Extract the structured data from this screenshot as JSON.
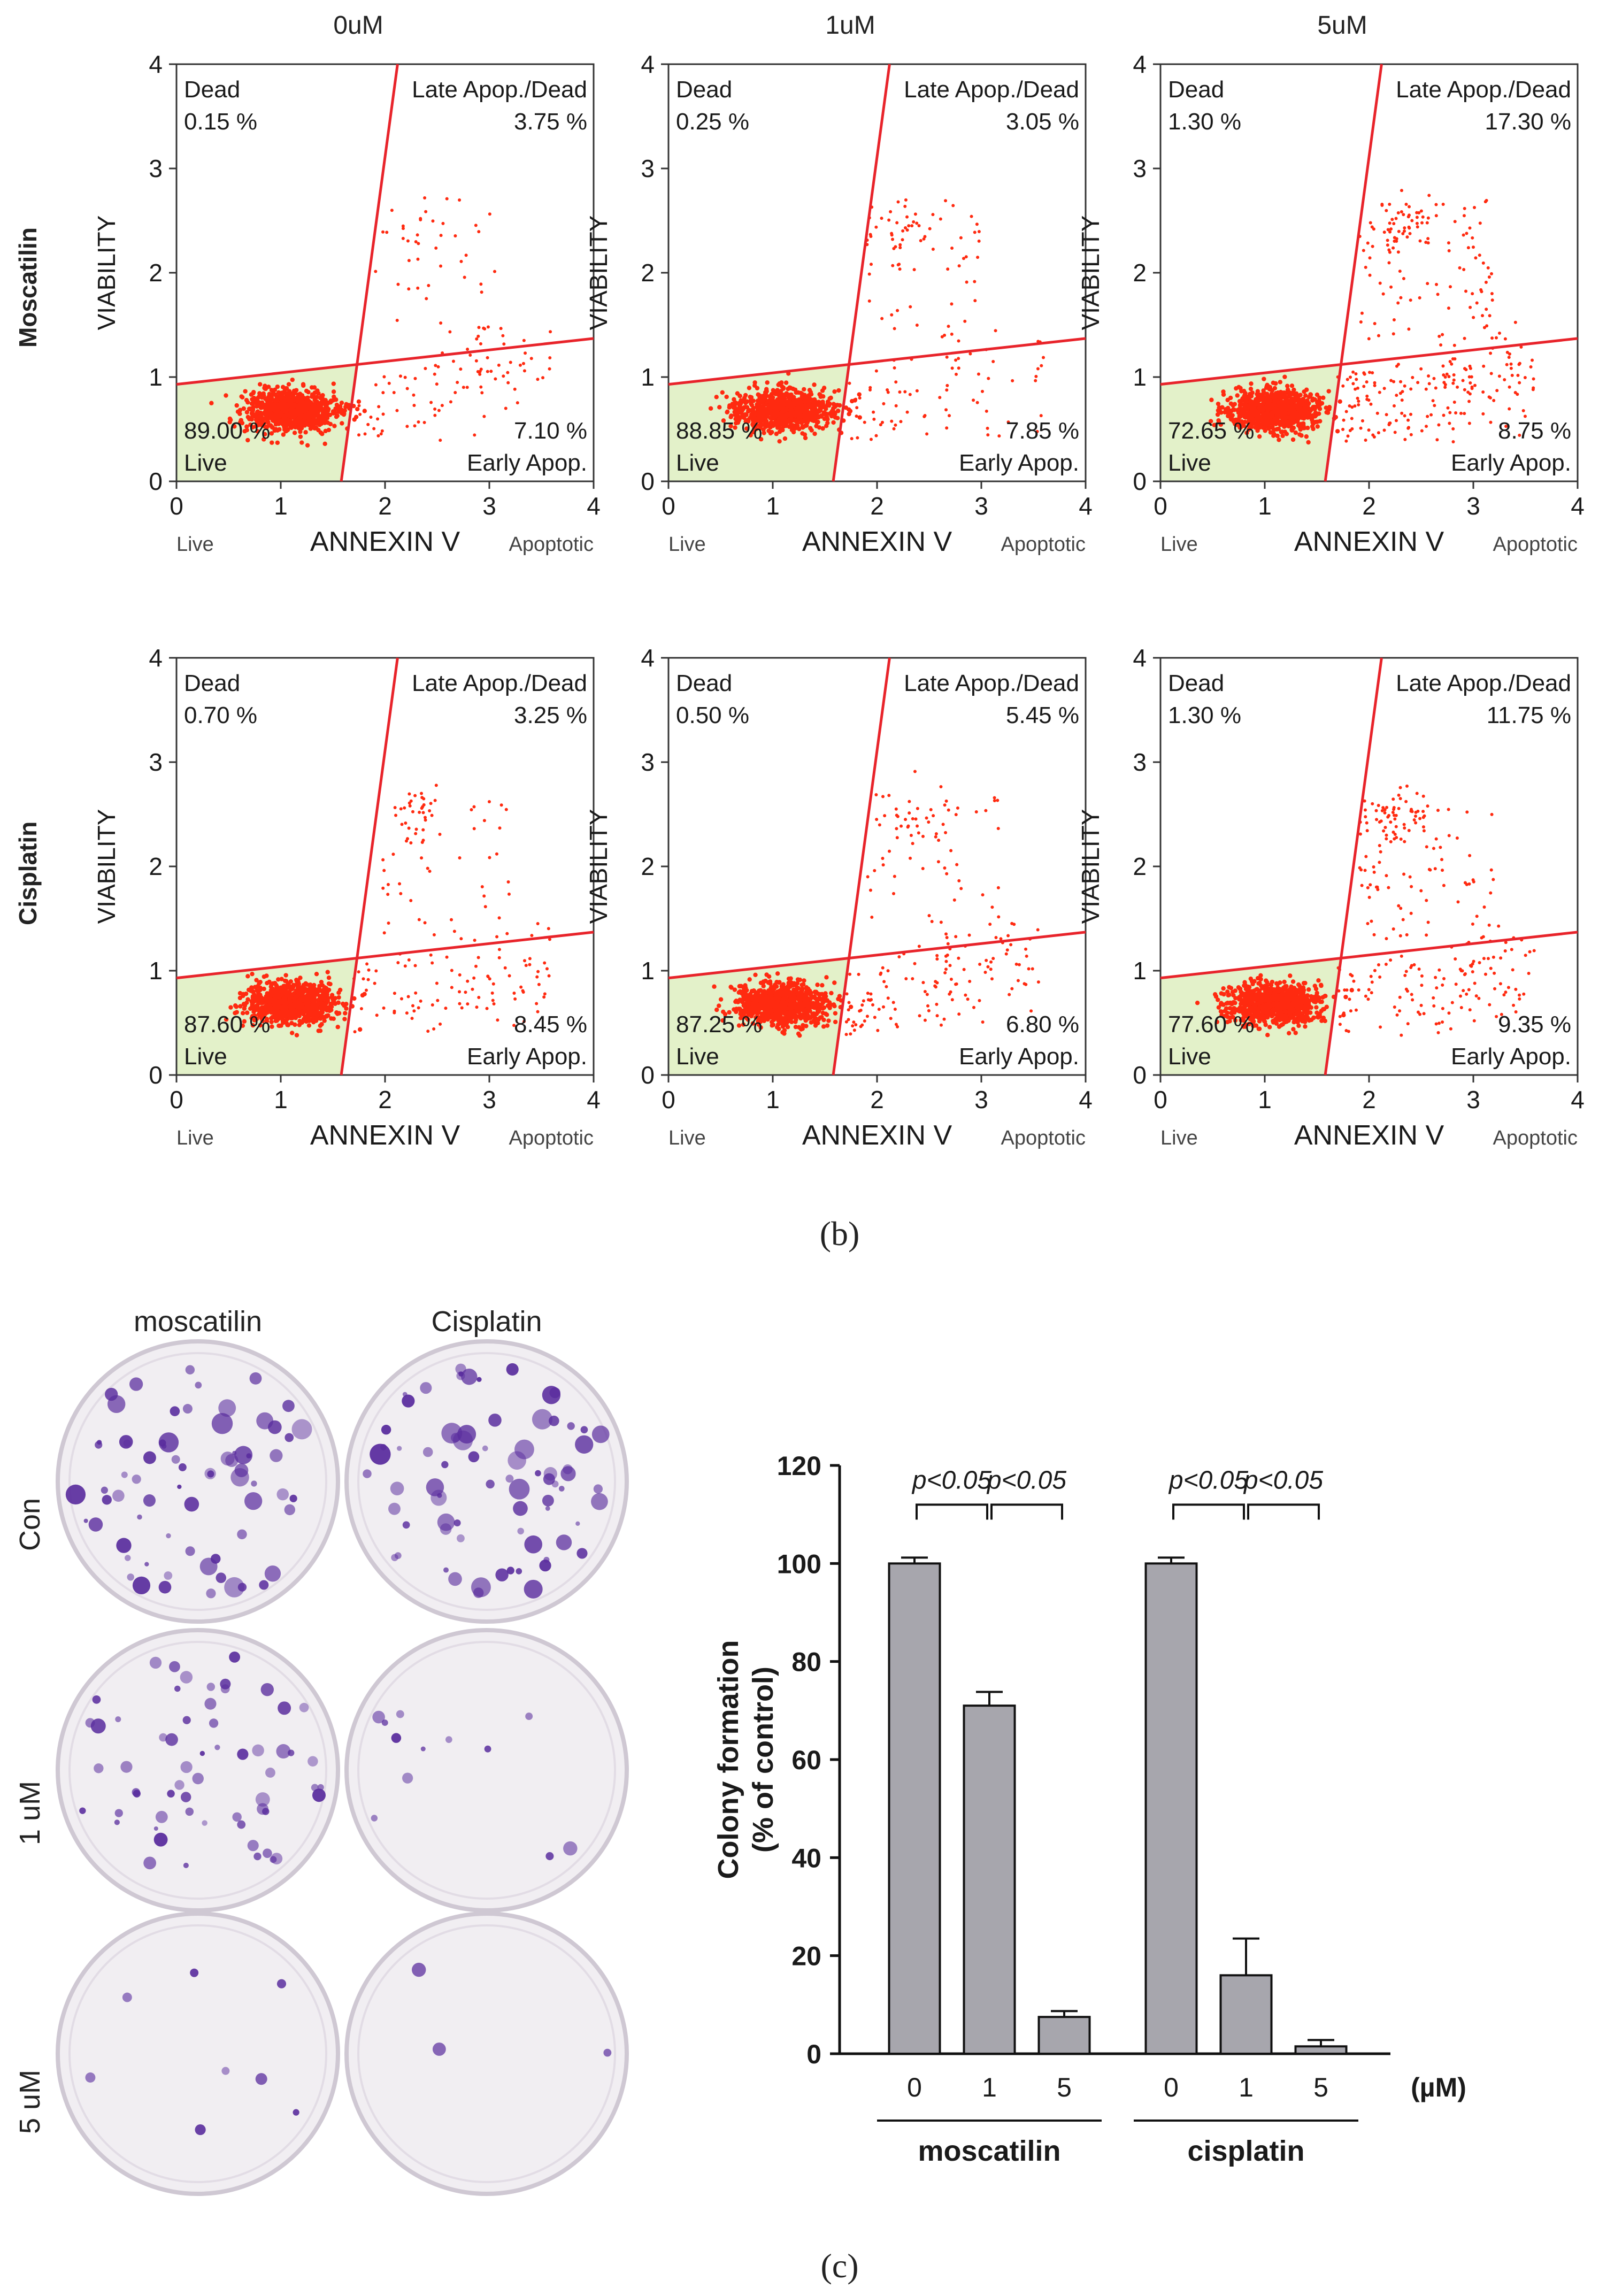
{
  "panel_b": {
    "label": "(b)",
    "concentrations": [
      "0uM",
      "1uM",
      "5uM"
    ],
    "row_labels": [
      "Moscatilin",
      "Cisplatin"
    ],
    "plot_text": {
      "ylabel": "VIABILITY",
      "xlabel": "ANNEXIN V",
      "x_left_note": "Live",
      "x_right_note": "Apoptotic",
      "q_dead": "Dead",
      "q_late": "Late Apop./Dead",
      "q_live": "Live",
      "q_early": "Early Apop."
    },
    "colors": {
      "gate_line": "#e8242b",
      "dots": "#ff2a10",
      "live_fill": "#e3f1c9"
    }
  },
  "panel_c": {
    "label": "(c)",
    "plate_columns": [
      "moscatilin",
      "Cisplatin"
    ],
    "plate_rows": [
      "Con",
      "1 uM",
      "5 uM"
    ],
    "plate_colors": {
      "stain": "#5a2d9e",
      "plate_bg": "#f1eef2",
      "rim": "#cfc8d3"
    }
  },
  "chart_data": [
    {
      "type": "scatter",
      "title": "0uM",
      "row": "Moscatilin",
      "xlabel": "ANNEXIN V",
      "ylabel": "VIABILITY",
      "xlim": [
        0,
        4
      ],
      "ylim": [
        0,
        4
      ],
      "quadrants": {
        "dead": "0.15 %",
        "late": "3.75 %",
        "live": "89.00 %",
        "early": "7.10 %"
      }
    },
    {
      "type": "scatter",
      "title": "1uM",
      "row": "Moscatilin",
      "xlabel": "ANNEXIN V",
      "ylabel": "VIABILITY",
      "xlim": [
        0,
        4
      ],
      "ylim": [
        0,
        4
      ],
      "quadrants": {
        "dead": "0.25 %",
        "late": "3.05 %",
        "live": "88.85 %",
        "early": "7.85 %"
      }
    },
    {
      "type": "scatter",
      "title": "5uM",
      "row": "Moscatilin",
      "xlabel": "ANNEXIN V",
      "ylabel": "VIABILITY",
      "xlim": [
        0,
        4
      ],
      "ylim": [
        0,
        4
      ],
      "quadrants": {
        "dead": "1.30 %",
        "late": "17.30 %",
        "live": "72.65 %",
        "early": "8.75 %"
      }
    },
    {
      "type": "scatter",
      "title": "0uM",
      "row": "Cisplatin",
      "xlabel": "ANNEXIN V",
      "ylabel": "VIABILITY",
      "xlim": [
        0,
        4
      ],
      "ylim": [
        0,
        4
      ],
      "quadrants": {
        "dead": "0.70 %",
        "late": "3.25 %",
        "live": "87.60 %",
        "early": "8.45 %"
      }
    },
    {
      "type": "scatter",
      "title": "1uM",
      "row": "Cisplatin",
      "xlabel": "ANNEXIN V",
      "ylabel": "VIABILITY",
      "xlim": [
        0,
        4
      ],
      "ylim": [
        0,
        4
      ],
      "quadrants": {
        "dead": "0.50 %",
        "late": "5.45 %",
        "live": "87.25 %",
        "early": "6.80 %"
      }
    },
    {
      "type": "scatter",
      "title": "5uM",
      "row": "Cisplatin",
      "xlabel": "ANNEXIN V",
      "ylabel": "VIABILITY",
      "xlim": [
        0,
        4
      ],
      "ylim": [
        0,
        4
      ],
      "quadrants": {
        "dead": "1.30 %",
        "late": "11.75 %",
        "live": "77.60 %",
        "early": "9.35 %"
      }
    },
    {
      "type": "bar",
      "ylabel": "Colony formation\n(% of control)",
      "ylim": [
        0,
        120
      ],
      "yticks": [
        0,
        20,
        40,
        60,
        80,
        100,
        120
      ],
      "unit": "(µM)",
      "groups": [
        {
          "name": "moscatilin",
          "categories": [
            "0",
            "1",
            "5"
          ],
          "values": [
            100,
            71,
            7.5
          ],
          "errors": [
            1.2,
            2.8,
            1.2
          ]
        },
        {
          "name": "cisplatin",
          "categories": [
            "0",
            "1",
            "5"
          ],
          "values": [
            100,
            16,
            1.5
          ],
          "errors": [
            1.2,
            7.5,
            1.3
          ]
        }
      ],
      "annotations": [
        "p<0.05",
        "p<0.05",
        "p<0.05",
        "p<0.05"
      ],
      "bar_color": "#a7a6ad"
    }
  ]
}
